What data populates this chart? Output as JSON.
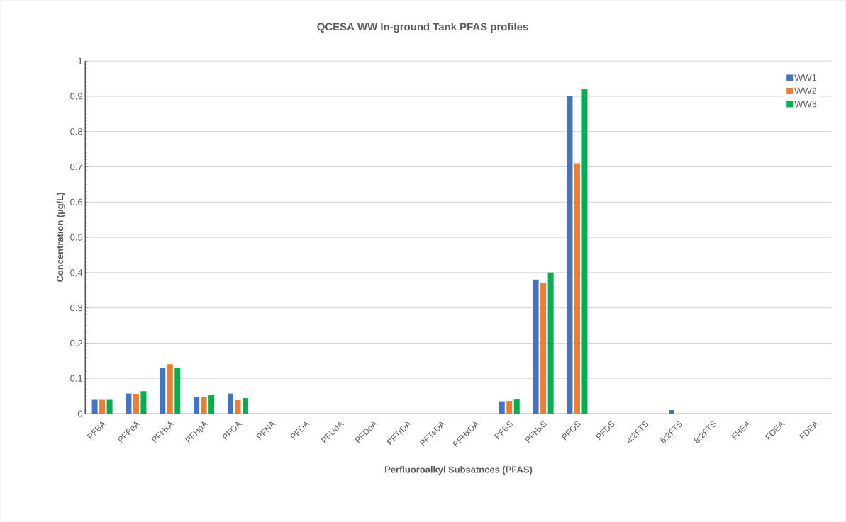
{
  "chart_data": {
    "type": "bar",
    "title": "QCESA WW In-ground Tank PFAS profiles",
    "xlabel": "Perfluoroalkyl Subsatnces (PFAS)",
    "ylabel": "Concentration (µg/L)",
    "categories": [
      "PFBA",
      "PFPeA",
      "PFHxA",
      "PFHpA",
      "PFOA",
      "PFNA",
      "PFDA",
      "PFUdA",
      "PFDoA",
      "PFTrDA",
      "PFTeDA",
      "PFHxDA",
      "PFBS",
      "PFHxS",
      "PFOS",
      "PFDS",
      "4:2FTS",
      "6:2FTS",
      "8:2FTS",
      "FHEA",
      "FOEA",
      "FDEA"
    ],
    "series": [
      {
        "name": "WW1",
        "color": "#4472c4",
        "values": [
          0.039,
          0.057,
          0.13,
          0.048,
          0.057,
          0,
          0,
          0,
          0,
          0,
          0,
          0,
          0.035,
          0.38,
          0.9,
          0,
          0,
          0.01,
          0,
          0,
          0,
          0
        ]
      },
      {
        "name": "WW2",
        "color": "#ed7d31",
        "values": [
          0.039,
          0.056,
          0.14,
          0.048,
          0.038,
          0,
          0,
          0,
          0,
          0,
          0,
          0,
          0.036,
          0.37,
          0.71,
          0,
          0,
          0,
          0,
          0,
          0,
          0
        ]
      },
      {
        "name": "WW3",
        "color": "#00b050",
        "values": [
          0.039,
          0.064,
          0.13,
          0.053,
          0.044,
          0,
          0,
          0,
          0,
          0,
          0,
          0,
          0.04,
          0.4,
          0.92,
          0,
          0,
          0,
          0,
          0,
          0,
          0
        ]
      }
    ],
    "ylim": [
      0,
      1
    ],
    "yticks": [
      0,
      0.1,
      0.2,
      0.3,
      0.4,
      0.5,
      0.6,
      0.7,
      0.8,
      0.9,
      1
    ],
    "grid": "y",
    "legend": "top right"
  }
}
